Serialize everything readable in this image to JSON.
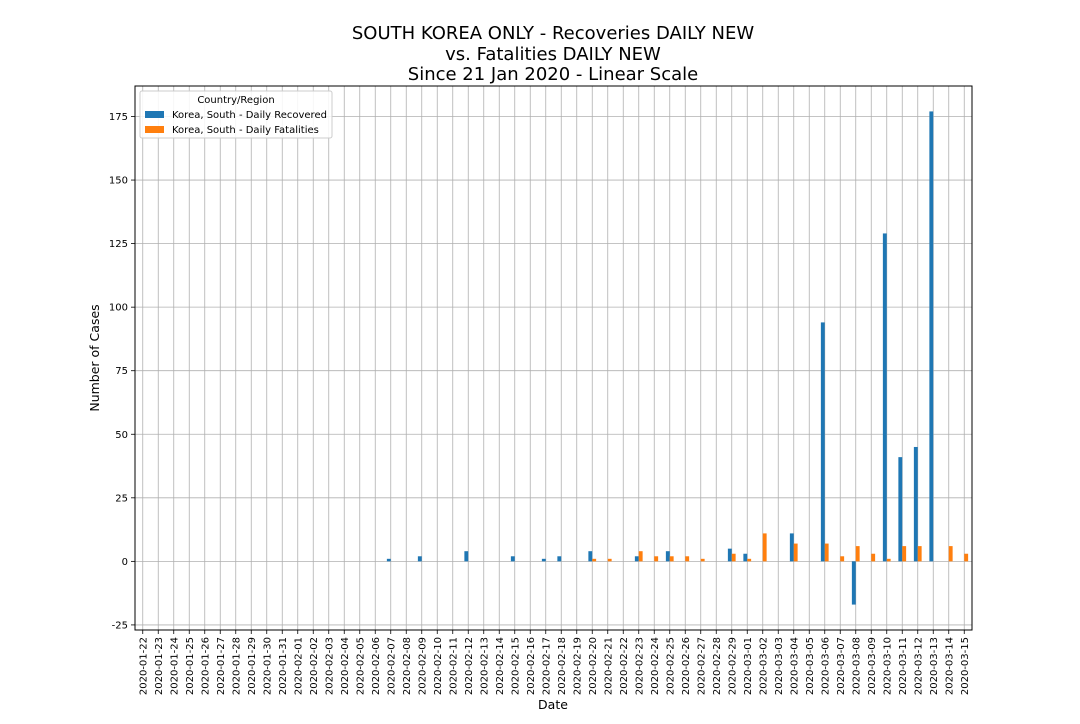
{
  "chart_data": {
    "type": "bar",
    "title_lines": [
      "SOUTH KOREA ONLY - Recoveries DAILY NEW",
      "vs. Fatalities DAILY NEW",
      "Since 21 Jan 2020 - Linear Scale"
    ],
    "xlabel": "Date",
    "ylabel": "Number of Cases",
    "ylim": [
      -27,
      187
    ],
    "yticks": [
      -25,
      0,
      25,
      50,
      75,
      100,
      125,
      150,
      175
    ],
    "grid": true,
    "legend": {
      "title": "Country/Region",
      "placement": "top-left"
    },
    "categories": [
      "2020-01-22",
      "2020-01-23",
      "2020-01-24",
      "2020-01-25",
      "2020-01-26",
      "2020-01-27",
      "2020-01-28",
      "2020-01-29",
      "2020-01-30",
      "2020-01-31",
      "2020-02-01",
      "2020-02-02",
      "2020-02-03",
      "2020-02-04",
      "2020-02-05",
      "2020-02-06",
      "2020-02-07",
      "2020-02-08",
      "2020-02-09",
      "2020-02-10",
      "2020-02-11",
      "2020-02-12",
      "2020-02-13",
      "2020-02-14",
      "2020-02-15",
      "2020-02-16",
      "2020-02-17",
      "2020-02-18",
      "2020-02-19",
      "2020-02-20",
      "2020-02-21",
      "2020-02-22",
      "2020-02-23",
      "2020-02-24",
      "2020-02-25",
      "2020-02-26",
      "2020-02-27",
      "2020-02-28",
      "2020-02-29",
      "2020-03-01",
      "2020-03-02",
      "2020-03-03",
      "2020-03-04",
      "2020-03-05",
      "2020-03-06",
      "2020-03-07",
      "2020-03-08",
      "2020-03-09",
      "2020-03-10",
      "2020-03-11",
      "2020-03-12",
      "2020-03-13",
      "2020-03-14",
      "2020-03-15"
    ],
    "series": [
      {
        "name": "Korea, South - Daily Recovered",
        "color": "#1f77b4",
        "values": [
          0,
          0,
          0,
          0,
          0,
          0,
          0,
          0,
          0,
          0,
          0,
          0,
          0,
          0,
          0,
          0,
          1,
          0,
          2,
          0,
          0,
          4,
          0,
          0,
          2,
          0,
          1,
          2,
          0,
          4,
          0,
          0,
          2,
          0,
          4,
          0,
          0,
          0,
          5,
          3,
          0,
          0,
          11,
          0,
          94,
          0,
          -17,
          0,
          129,
          41,
          45,
          177,
          0,
          0
        ]
      },
      {
        "name": "Korea, South - Daily Fatalities",
        "color": "#ff7f0e",
        "values": [
          0,
          0,
          0,
          0,
          0,
          0,
          0,
          0,
          0,
          0,
          0,
          0,
          0,
          0,
          0,
          0,
          0,
          0,
          0,
          0,
          0,
          0,
          0,
          0,
          0,
          0,
          0,
          0,
          0,
          1,
          1,
          0,
          4,
          2,
          2,
          2,
          1,
          0,
          3,
          1,
          11,
          0,
          7,
          0,
          7,
          2,
          6,
          3,
          1,
          6,
          6,
          0,
          6,
          3
        ]
      }
    ]
  }
}
